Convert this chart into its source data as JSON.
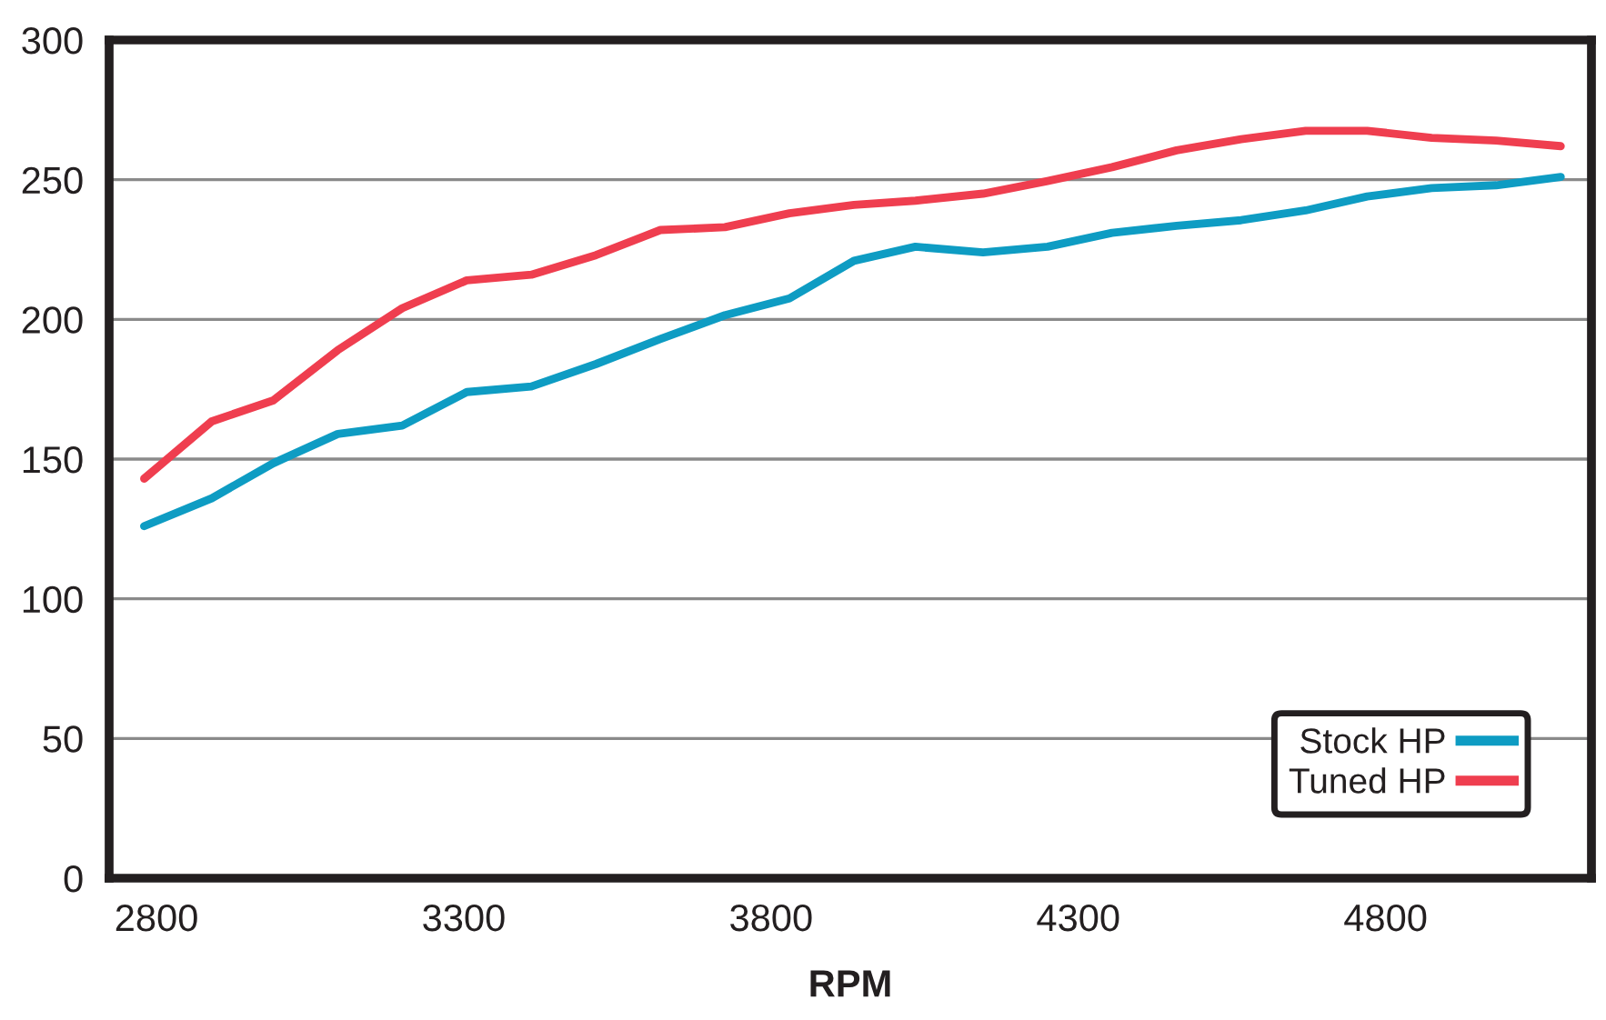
{
  "chart_data": {
    "type": "line",
    "xlabel": "RPM",
    "x": [
      2780,
      2890,
      2990,
      3095,
      3200,
      3305,
      3410,
      3515,
      3620,
      3725,
      3830,
      3935,
      4035,
      4145,
      4250,
      4355,
      4460,
      4565,
      4670,
      4770,
      4875,
      4980,
      5085
    ],
    "series": [
      {
        "name": "Stock HP",
        "color": "#0e9cc3",
        "values": [
          126,
          136,
          148.5,
          159,
          162,
          174,
          176,
          184,
          193,
          201.5,
          207.5,
          221,
          226,
          224,
          226,
          231,
          233.5,
          235.5,
          239,
          244,
          247,
          248,
          251
        ]
      },
      {
        "name": "Tuned HP",
        "color": "#ef3e4f",
        "values": [
          143,
          163.5,
          171,
          189,
          204,
          214,
          216,
          223,
          232,
          233,
          238,
          241,
          242.5,
          245,
          249.5,
          254.5,
          260.5,
          264.5,
          267.5,
          267.5,
          265,
          264,
          262
        ]
      }
    ],
    "xlim": [
      2723,
      5135
    ],
    "xticks": [
      2800,
      3300,
      3800,
      4300,
      4800
    ],
    "ylim": [
      0,
      300
    ],
    "yticks": [
      0,
      50,
      100,
      150,
      200,
      250,
      300
    ],
    "grid": "y",
    "legend": "bottom right",
    "marker": "none",
    "line_style": "solid"
  }
}
